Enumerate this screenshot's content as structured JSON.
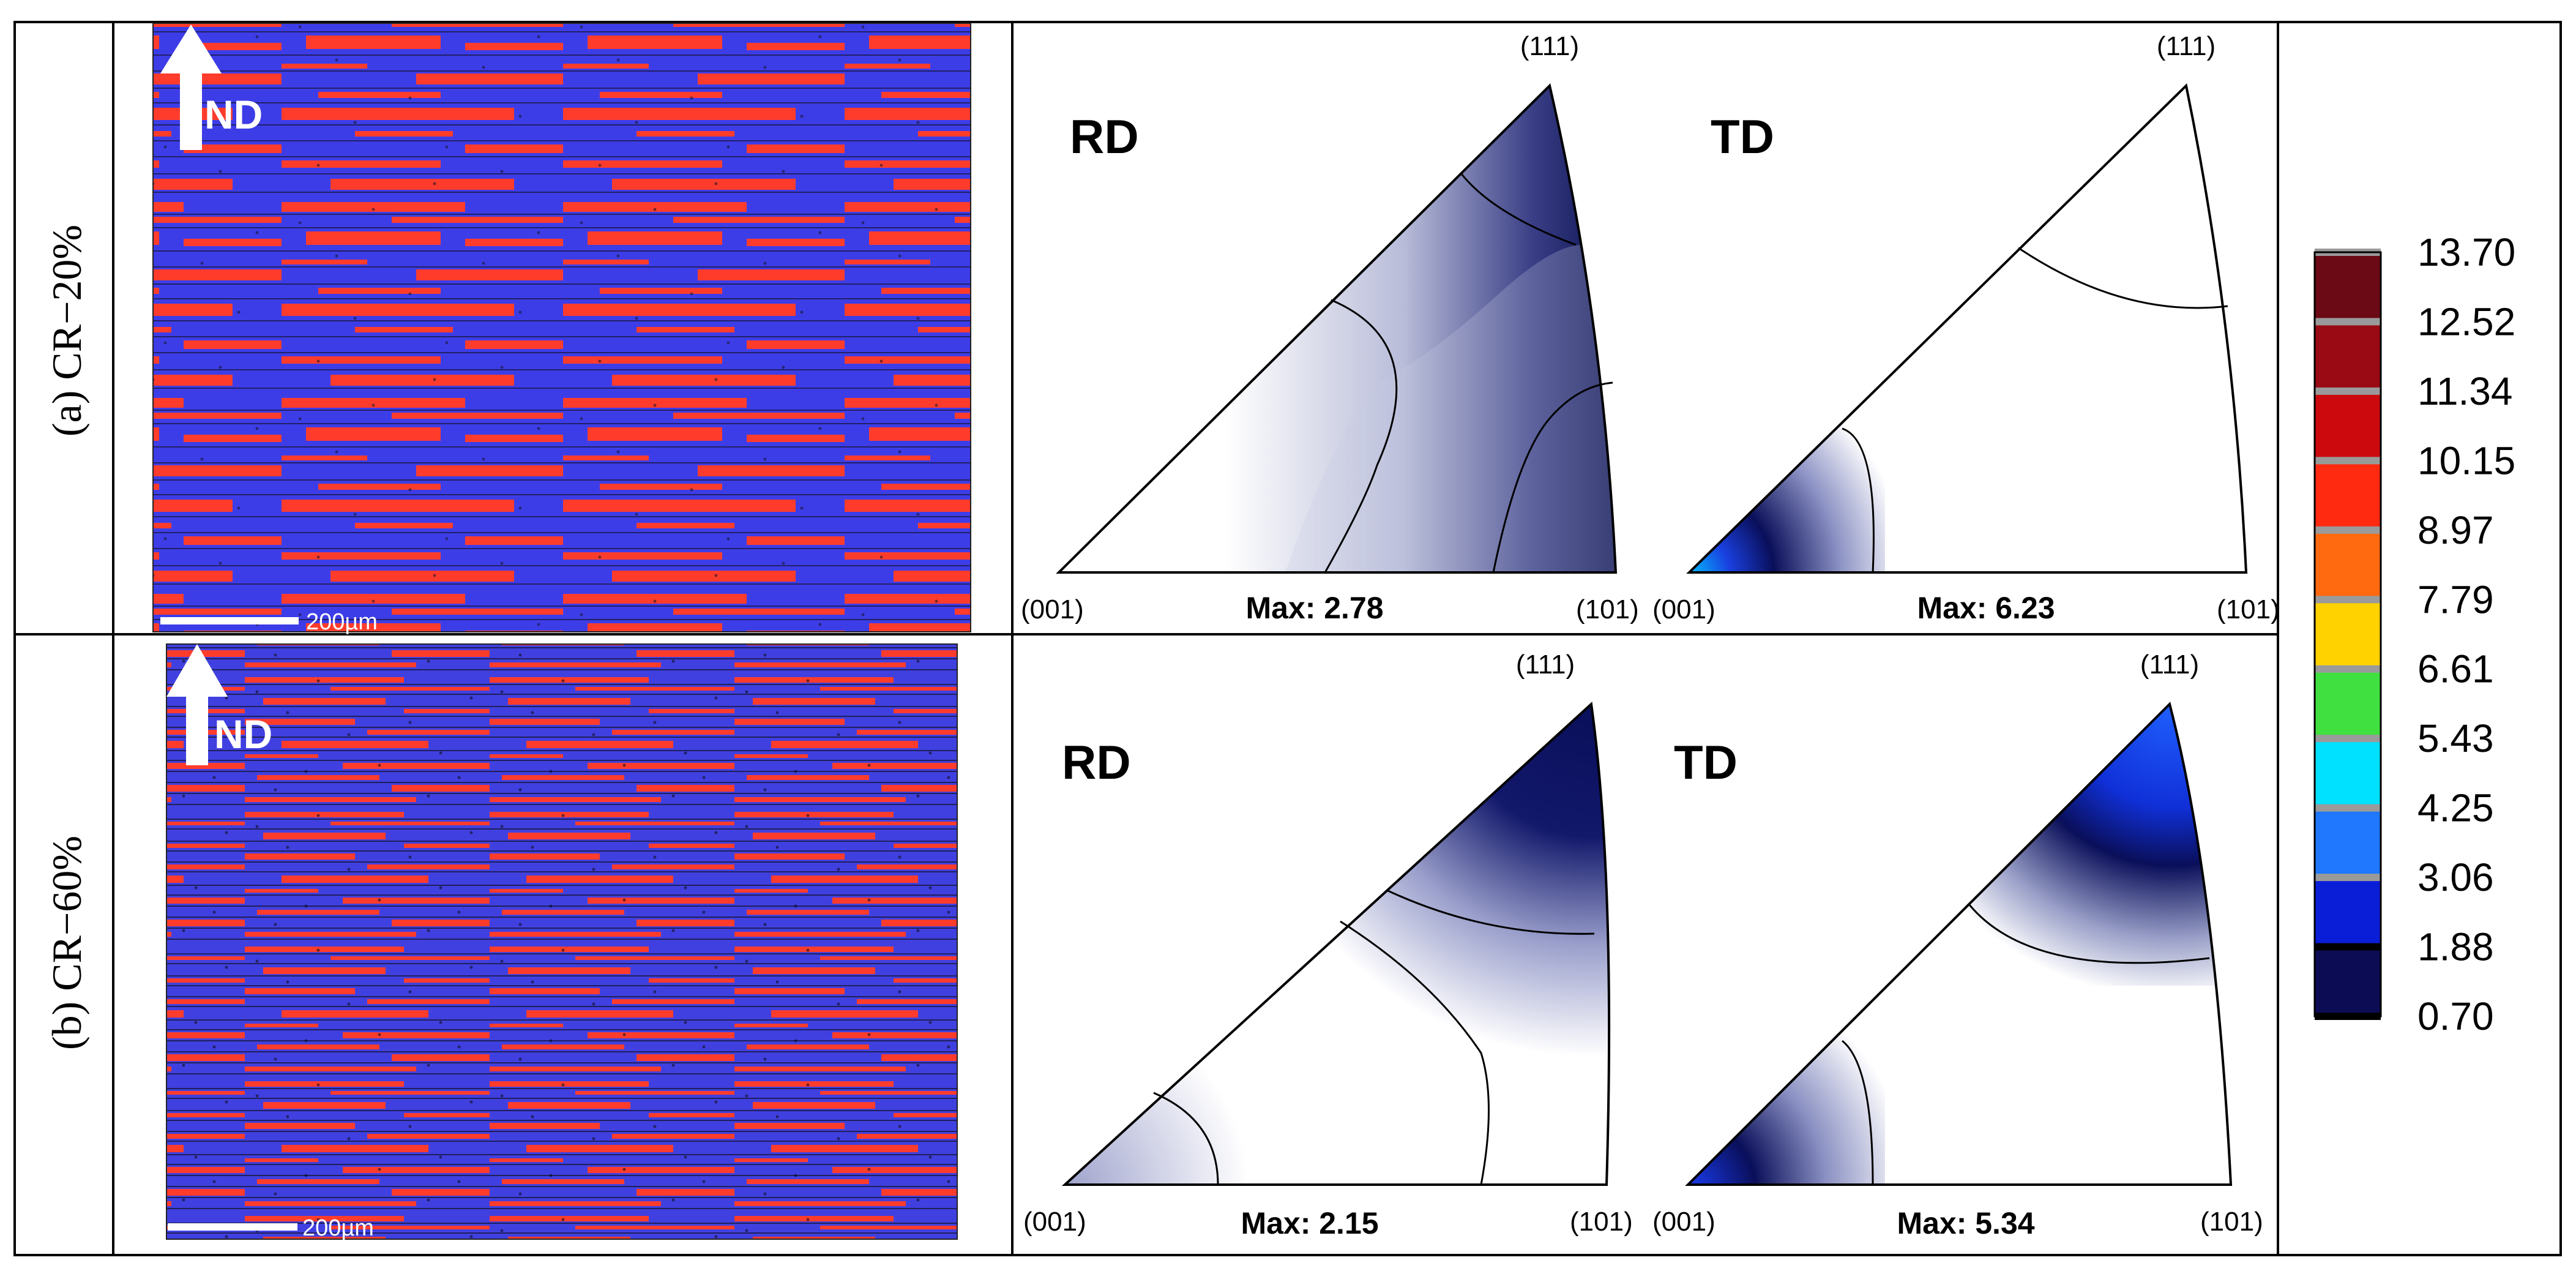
{
  "figure": {
    "rows": [
      {
        "row_label": "(a) CR−20%",
        "ebsd": {
          "direction_label": "ND",
          "scale_bar_label": "200µm"
        },
        "ipfs": [
          {
            "direction": "RD",
            "max_label": "Max: 2.78",
            "max_value": 2.78
          },
          {
            "direction": "TD",
            "max_label": "Max: 6.23",
            "max_value": 6.23
          }
        ]
      },
      {
        "row_label": "(b) CR−60%",
        "ebsd": {
          "direction_label": "ND",
          "scale_bar_label": "200µm"
        },
        "ipfs": [
          {
            "direction": "RD",
            "max_label": "Max: 2.15",
            "max_value": 2.15
          },
          {
            "direction": "TD",
            "max_label": "Max: 5.34",
            "max_value": 5.34
          }
        ]
      }
    ],
    "corner_labels": {
      "c001": "(001)",
      "c101": "(101)",
      "c111": "(111)"
    },
    "colorbar": {
      "ticks": [
        "13.70",
        "12.52",
        "11.34",
        "10.15",
        "8.97",
        "7.79",
        "6.61",
        "5.43",
        "4.25",
        "3.06",
        "1.88",
        "0.70"
      ],
      "colors": [
        "#6b0a14",
        "#9a0a14",
        "#cc0a0e",
        "#ff2a10",
        "#ff6a10",
        "#ffd200",
        "#40e040",
        "#00e0ff",
        "#1f78ff",
        "#0a1ed8",
        "#0c0c55",
        "#e8e8f2"
      ]
    },
    "colors": {
      "border": "#000000",
      "ebsd_blue": "#3a3ae6",
      "ebsd_red": "#ff3a2e",
      "ipf_dark": "#0a0f5a",
      "ipf_light": "#ffffff"
    }
  }
}
